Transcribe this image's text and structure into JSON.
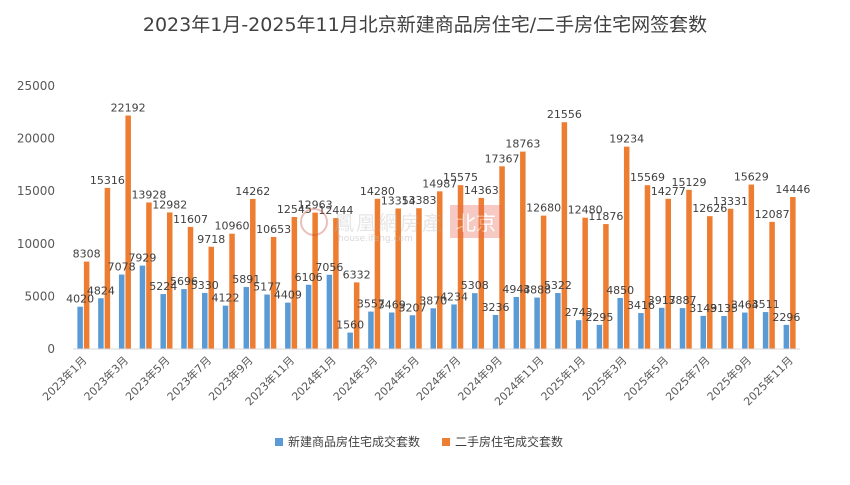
{
  "chart_data": {
    "type": "bar",
    "title": "2023年1月-2025年11月北京新建商品房住宅/二手房住宅网签套数",
    "xlabel": "",
    "ylabel": "",
    "ylim": [
      0,
      25000
    ],
    "yticks": [
      "0",
      "5000",
      "10000",
      "15000",
      "20000",
      "25000"
    ],
    "grid": false,
    "legend_position": "bottom",
    "categories": [
      "2023年1月",
      "2023年2月",
      "2023年3月",
      "2023年4月",
      "2023年5月",
      "2023年6月",
      "2023年7月",
      "2023年8月",
      "2023年9月",
      "2023年10月",
      "2023年11月",
      "2023年12月",
      "2024年1月",
      "2024年2月",
      "2024年3月",
      "2024年4月",
      "2024年5月",
      "2024年6月",
      "2024年7月",
      "2024年8月",
      "2024年9月",
      "2024年10月",
      "2024年11月",
      "2024年12月",
      "2025年1月",
      "2025年2月",
      "2025年3月",
      "2025年4月",
      "2025年5月",
      "2025年6月",
      "2025年7月",
      "2025年8月",
      "2025年9月",
      "2025年10月",
      "2025年11月"
    ],
    "x_tick_labels": [
      "2023年1月",
      "",
      "2023年3月",
      "",
      "2023年5月",
      "",
      "2023年7月",
      "",
      "2023年9月",
      "",
      "2023年11月",
      "",
      "2024年1月",
      "",
      "2024年3月",
      "",
      "2024年5月",
      "",
      "2024年7月",
      "",
      "2024年9月",
      "",
      "2024年11月",
      "",
      "2025年1月",
      "",
      "2025年3月",
      "",
      "2025年5月",
      "",
      "2025年7月",
      "",
      "2025年9月",
      "",
      "2025年11月"
    ],
    "series": [
      {
        "name": "新建商品房住宅成交套数",
        "color": "#5b9bd5",
        "values": [
          4020,
          4824,
          7078,
          7929,
          5224,
          5696,
          5330,
          4122,
          5891,
          5177,
          4409,
          6106,
          7056,
          1560,
          3557,
          3469,
          3207,
          3870,
          4234,
          5308,
          3236,
          4943,
          4888,
          5322,
          2743,
          2295,
          4850,
          3416,
          3917,
          3887,
          3149,
          3135,
          3464,
          3511,
          2296
        ]
      },
      {
        "name": "二手房住宅成交套数",
        "color": "#ed7d31",
        "values": [
          8308,
          15316,
          22192,
          13928,
          12982,
          11607,
          9718,
          10960,
          14262,
          10653,
          12545,
          12963,
          12444,
          6332,
          14280,
          13354,
          13383,
          14987,
          15575,
          14363,
          17367,
          18763,
          12680,
          21556,
          12480,
          11876,
          19234,
          15569,
          14277,
          15129,
          12626,
          13331,
          15629,
          12087,
          14446
        ]
      }
    ]
  },
  "watermark": {
    "text": "鳳凰網房產",
    "badge": "北京",
    "sub": "house.ifeng.com"
  }
}
